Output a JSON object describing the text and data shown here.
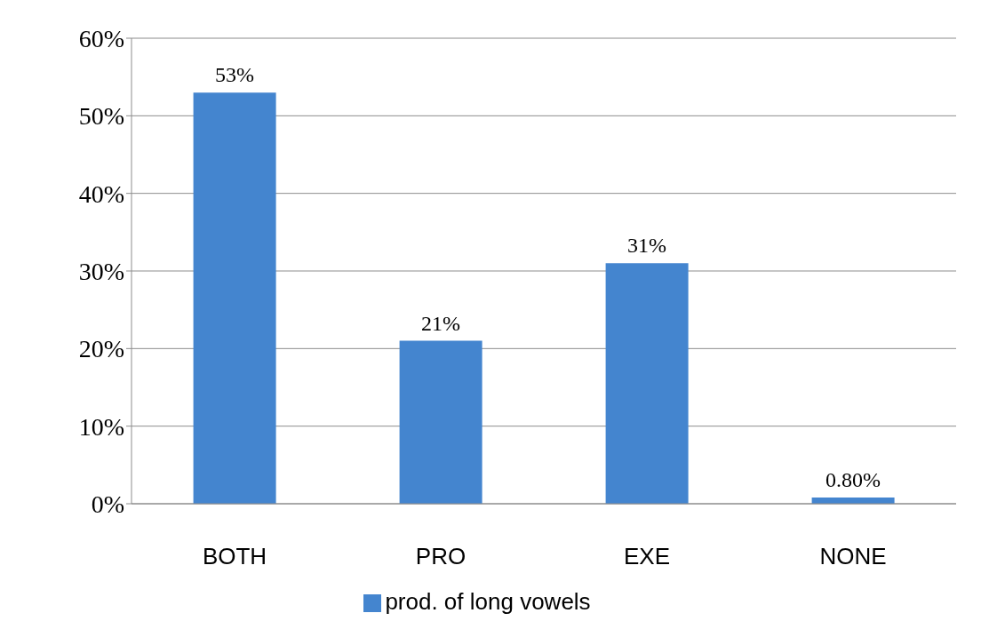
{
  "chart_data": {
    "type": "bar",
    "categories": [
      "BOTH",
      "PRO",
      "EXE",
      "NONE"
    ],
    "series": [
      {
        "name": "prod. of long vowels",
        "color": "#4485cf",
        "values": [
          53,
          21,
          31,
          0.8
        ],
        "value_labels": [
          "53%",
          "21%",
          "31%",
          "0.80%"
        ]
      }
    ],
    "ylim": [
      0,
      60
    ],
    "yticks": [
      {
        "value": 0,
        "label": "0%"
      },
      {
        "value": 10,
        "label": "10%"
      },
      {
        "value": 20,
        "label": "20%"
      },
      {
        "value": 30,
        "label": "30%"
      },
      {
        "value": 40,
        "label": "40%"
      },
      {
        "value": 50,
        "label": "50%"
      },
      {
        "value": 60,
        "label": "60%"
      }
    ],
    "grid": "y",
    "legend": "bottom"
  }
}
